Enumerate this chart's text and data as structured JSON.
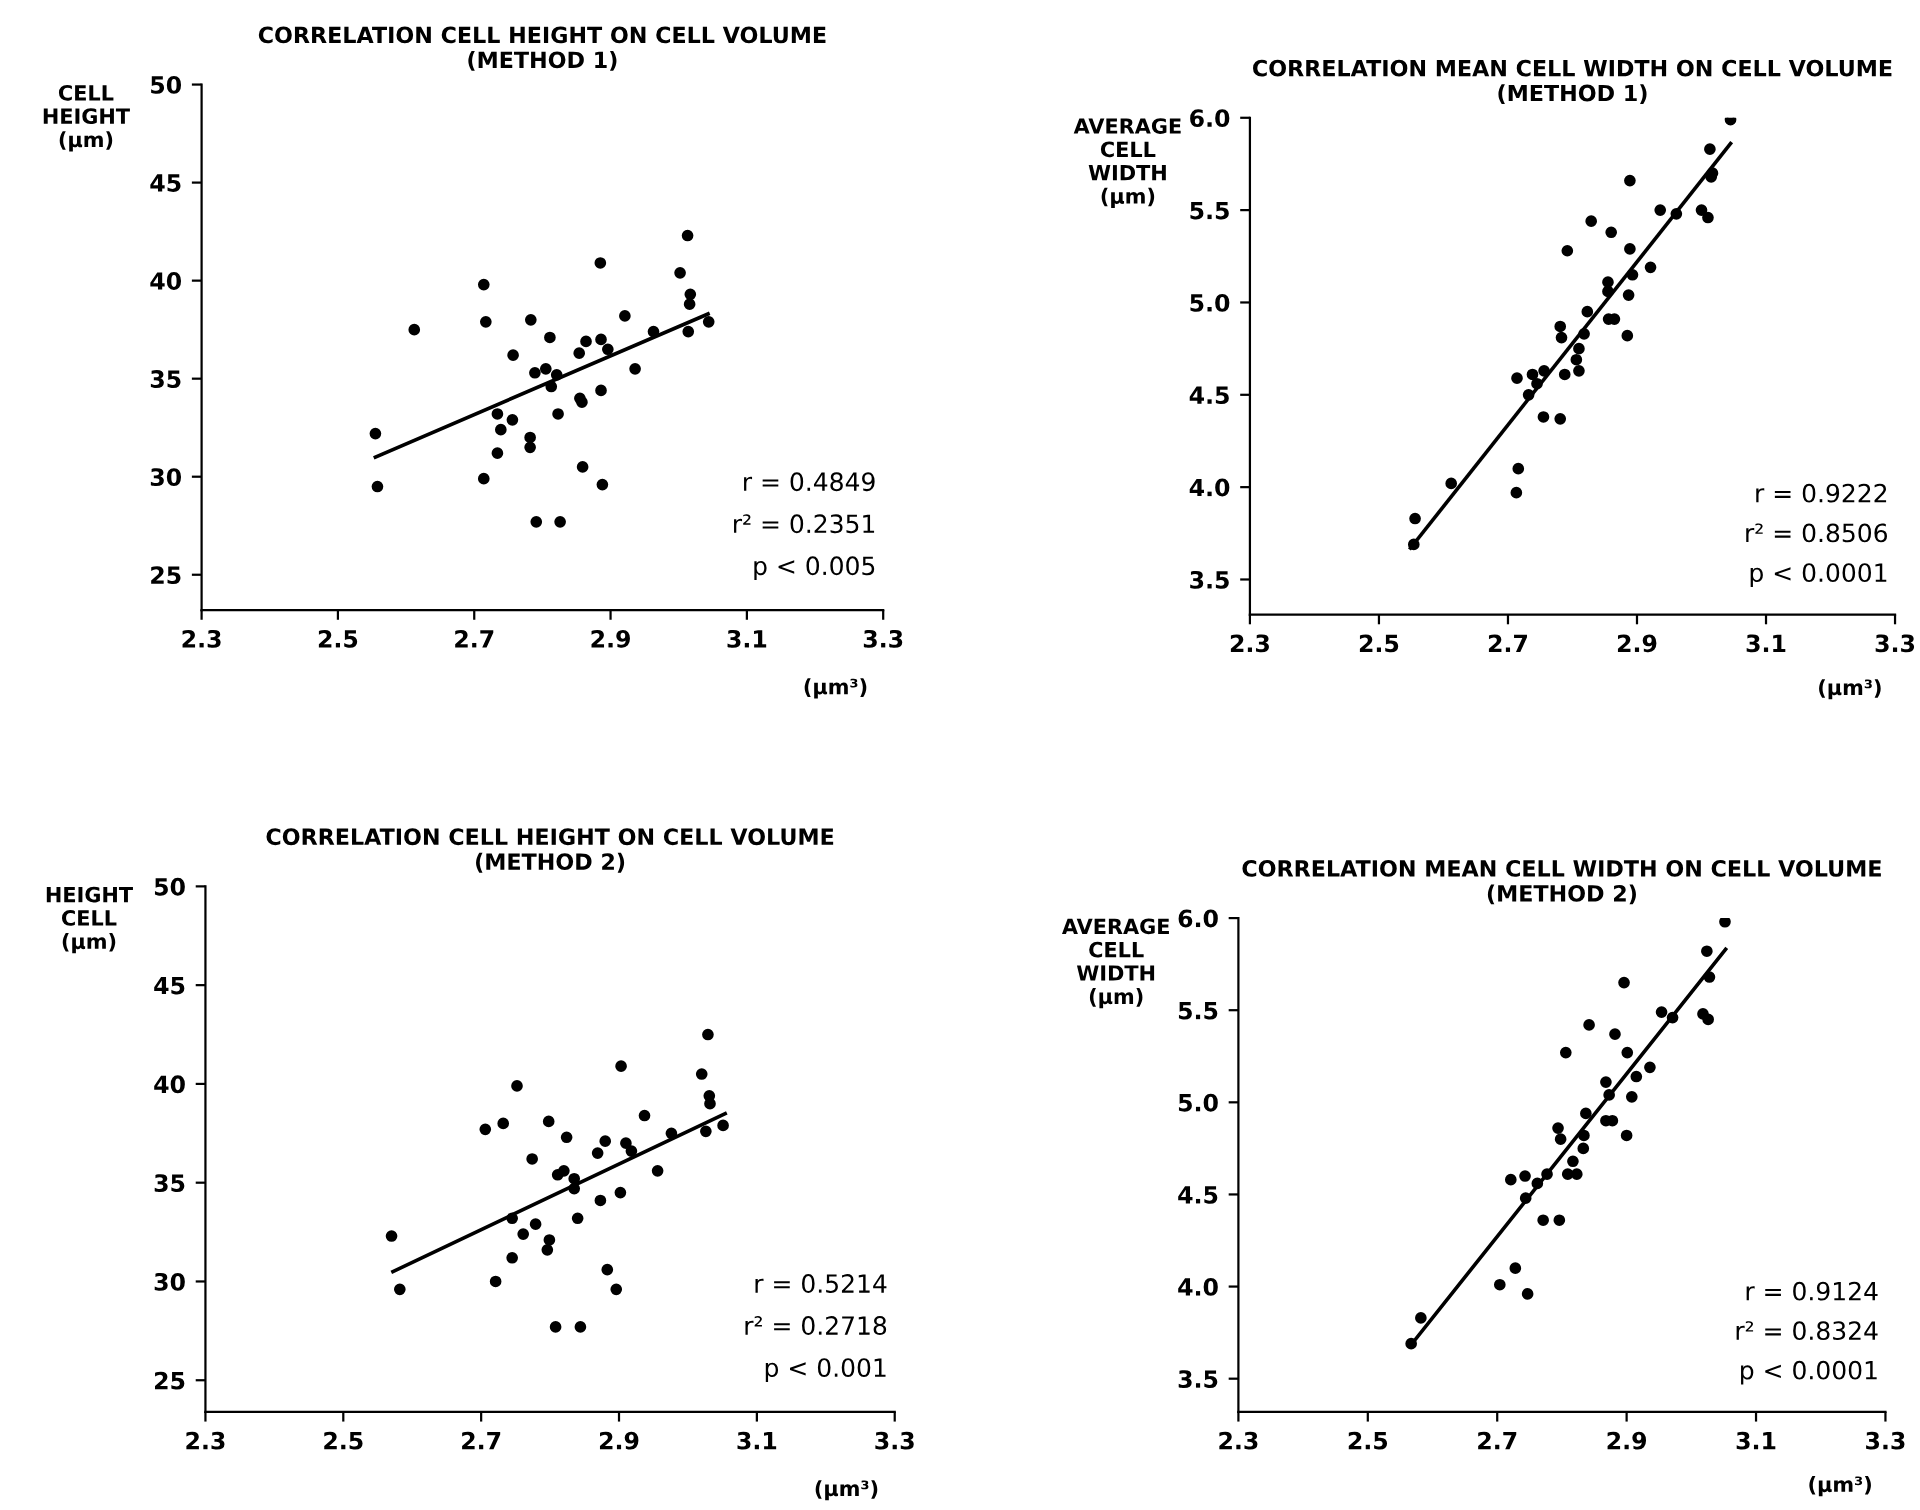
{
  "chart_data": [
    {
      "type": "scatter",
      "title": "CORRELATION CELL HEIGHT ON CELL VOLUME",
      "subtitle": "(METHOD 1)",
      "ylabel": "CELL\nHEIGHT\n(μm)",
      "xlabel": "(μm³)",
      "xlim": [
        2.3,
        3.3
      ],
      "xticks": [
        2.3,
        2.5,
        2.7,
        2.9,
        3.1,
        3.3
      ],
      "ylim": [
        23.2,
        50
      ],
      "yticks": [
        25,
        30,
        35,
        40,
        45,
        50
      ],
      "grid": false,
      "legend": false,
      "marker": "circle",
      "annotations": [
        "r = 0.4849",
        "r² = 0.2351",
        "p < 0.005"
      ],
      "series": [
        {
          "color": "#000000",
          "x": [
            2.555,
            2.558,
            2.612,
            2.714,
            2.717,
            2.714,
            2.734,
            2.739,
            2.734,
            2.757,
            2.756,
            2.783,
            2.782,
            2.782,
            2.789,
            2.805,
            2.811,
            2.813,
            2.821,
            2.823,
            2.791,
            2.826,
            2.854,
            2.855,
            2.858,
            2.864,
            2.859,
            2.885,
            2.886,
            2.886,
            2.896,
            2.888,
            2.921,
            2.936,
            2.963,
            3.002,
            3.013,
            3.017,
            3.016,
            3.014,
            3.044
          ],
          "values": [
            32.2,
            29.5,
            37.5,
            39.8,
            37.9,
            29.9,
            33.2,
            32.4,
            31.2,
            36.2,
            32.9,
            38.0,
            32.0,
            31.5,
            35.3,
            35.5,
            37.1,
            34.6,
            35.2,
            33.2,
            27.7,
            27.7,
            36.3,
            34.0,
            33.8,
            36.9,
            30.5,
            40.9,
            37.0,
            34.4,
            36.5,
            29.6,
            38.2,
            35.5,
            37.4,
            40.4,
            42.3,
            39.3,
            38.8,
            37.4,
            37.9
          ]
        },
        {
          "type": "line",
          "color": "#000000",
          "marker": "none",
          "line_style": "solid",
          "x": [
            2.555,
            3.043
          ],
          "values": [
            31.0,
            38.3
          ]
        }
      ]
    },
    {
      "type": "scatter",
      "title": "CORRELATION MEAN CELL WIDTH ON CELL VOLUME",
      "subtitle": "(METHOD 1)",
      "ylabel": "AVERAGE\nCELL\nWIDTH\n(μm)",
      "xlabel": "(μm³)",
      "xlim": [
        2.3,
        3.3
      ],
      "xticks": [
        2.3,
        2.5,
        2.7,
        2.9,
        3.1,
        3.3
      ],
      "ylim": [
        3.31,
        6.0
      ],
      "yticks": [
        3.5,
        {
          "value": 4,
          "label": "4.0"
        },
        4.5,
        {
          "value": 5,
          "label": "5.0"
        },
        5.5,
        {
          "value": 6,
          "label": "6.0"
        }
      ],
      "grid": false,
      "legend": false,
      "marker": "circle",
      "annotations": [
        "r = 0.9222",
        "r² = 0.8506",
        "p < 0.0001"
      ],
      "series": [
        {
          "color": "#000000",
          "x": [
            2.556,
            2.554,
            2.612,
            2.714,
            2.716,
            2.713,
            2.732,
            2.738,
            2.745,
            2.756,
            2.755,
            2.781,
            2.781,
            2.783,
            2.792,
            2.788,
            2.806,
            2.81,
            2.81,
            2.818,
            2.823,
            2.829,
            2.855,
            2.855,
            2.856,
            2.865,
            2.86,
            2.885,
            2.887,
            2.889,
            2.889,
            2.893,
            2.921,
            2.936,
            2.961,
            3.0,
            3.01,
            3.013,
            3.015,
            3.017,
            3.045
          ],
          "values": [
            3.83,
            3.69,
            4.02,
            4.59,
            4.1,
            3.97,
            4.5,
            4.61,
            4.56,
            4.63,
            4.38,
            4.37,
            4.87,
            4.81,
            5.28,
            4.61,
            4.69,
            4.75,
            4.63,
            4.83,
            4.95,
            5.44,
            5.11,
            5.06,
            4.91,
            4.91,
            5.38,
            4.82,
            5.04,
            5.29,
            5.66,
            5.15,
            5.19,
            5.5,
            5.48,
            5.5,
            5.46,
            5.83,
            5.68,
            5.7,
            5.99
          ]
        },
        {
          "type": "line",
          "color": "#000000",
          "marker": "none",
          "line_style": "solid",
          "x": [
            2.549,
            3.045
          ],
          "values": [
            3.67,
            5.86
          ]
        }
      ]
    },
    {
      "type": "scatter",
      "title": "CORRELATION CELL HEIGHT ON CELL VOLUME",
      "subtitle": "(METHOD 2)",
      "ylabel": "HEIGHT\nCELL\n(μm)",
      "xlabel": "(μm³)",
      "xlim": [
        2.3,
        3.3
      ],
      "xticks": [
        2.3,
        2.5,
        2.7,
        2.9,
        3.1,
        3.3
      ],
      "ylim": [
        23.4,
        50
      ],
      "yticks": [
        25,
        30,
        35,
        40,
        45,
        50
      ],
      "grid": false,
      "legend": false,
      "marker": "circle",
      "annotations": [
        "r = 0.5214",
        "r² = 0.2718",
        "p < 0.001"
      ],
      "series": [
        {
          "color": "#000000",
          "x": [
            2.57,
            2.582,
            2.706,
            2.732,
            2.752,
            2.721,
            2.745,
            2.745,
            2.761,
            2.774,
            2.779,
            2.798,
            2.799,
            2.796,
            2.808,
            2.844,
            2.811,
            2.82,
            2.824,
            2.835,
            2.835,
            2.84,
            2.869,
            2.873,
            2.88,
            2.883,
            2.896,
            2.903,
            2.902,
            2.91,
            2.918,
            2.937,
            2.956,
            2.976,
            3.02,
            3.029,
            3.031,
            3.032,
            3.026,
            3.051
          ],
          "values": [
            32.3,
            29.6,
            37.7,
            38.0,
            39.9,
            30.0,
            33.2,
            31.2,
            32.4,
            36.2,
            32.9,
            38.1,
            32.1,
            31.6,
            27.7,
            27.7,
            35.4,
            35.6,
            37.3,
            35.2,
            34.7,
            33.2,
            36.5,
            34.1,
            37.1,
            30.6,
            29.6,
            40.9,
            34.5,
            37.0,
            36.6,
            38.4,
            35.6,
            37.5,
            40.5,
            42.5,
            39.4,
            39.0,
            37.6,
            37.9
          ]
        },
        {
          "type": "line",
          "color": "#000000",
          "marker": "none",
          "line_style": "solid",
          "x": [
            2.572,
            3.054
          ],
          "values": [
            30.5,
            38.5
          ]
        }
      ]
    },
    {
      "type": "scatter",
      "title": "CORRELATION MEAN CELL WIDTH ON CELL VOLUME",
      "subtitle": "(METHOD 2)",
      "ylabel": "AVERAGE\nCELL\nWIDTH\n(μm)",
      "xlabel": "(μm³)",
      "xlim": [
        2.3,
        3.3
      ],
      "xticks": [
        2.3,
        2.5,
        2.7,
        2.9,
        3.1,
        3.3
      ],
      "ylim": [
        3.32,
        6.0
      ],
      "yticks": [
        3.5,
        {
          "value": 4,
          "label": "4.0"
        },
        4.5,
        {
          "value": 5,
          "label": "5.0"
        },
        5.5,
        {
          "value": 6,
          "label": "6.0"
        }
      ],
      "grid": false,
      "legend": false,
      "marker": "circle",
      "annotations": [
        "r = 0.9124",
        "r² = 0.8324",
        "p < 0.0001"
      ],
      "series": [
        {
          "color": "#000000",
          "x": [
            2.567,
            2.582,
            2.704,
            2.728,
            2.747,
            2.721,
            2.743,
            2.744,
            2.762,
            2.771,
            2.777,
            2.796,
            2.794,
            2.798,
            2.806,
            2.809,
            2.817,
            2.823,
            2.833,
            2.834,
            2.837,
            2.842,
            2.868,
            2.873,
            2.868,
            2.878,
            2.882,
            2.896,
            2.9,
            2.901,
            2.908,
            2.915,
            2.936,
            2.954,
            2.971,
            3.024,
            3.018,
            3.026,
            3.028,
            3.052
          ],
          "values": [
            3.69,
            3.83,
            4.01,
            4.1,
            3.96,
            4.58,
            4.6,
            4.48,
            4.56,
            4.36,
            4.61,
            4.36,
            4.86,
            4.8,
            5.27,
            4.61,
            4.68,
            4.61,
            4.75,
            4.82,
            4.94,
            5.42,
            5.11,
            5.04,
            4.9,
            4.9,
            5.37,
            5.65,
            4.82,
            5.27,
            5.03,
            5.14,
            5.19,
            5.49,
            5.46,
            5.82,
            5.48,
            5.45,
            5.68,
            5.98
          ]
        },
        {
          "type": "line",
          "color": "#000000",
          "marker": "none",
          "line_style": "solid",
          "x": [
            2.566,
            3.053
          ],
          "values": [
            3.68,
            5.83
          ]
        }
      ]
    }
  ]
}
